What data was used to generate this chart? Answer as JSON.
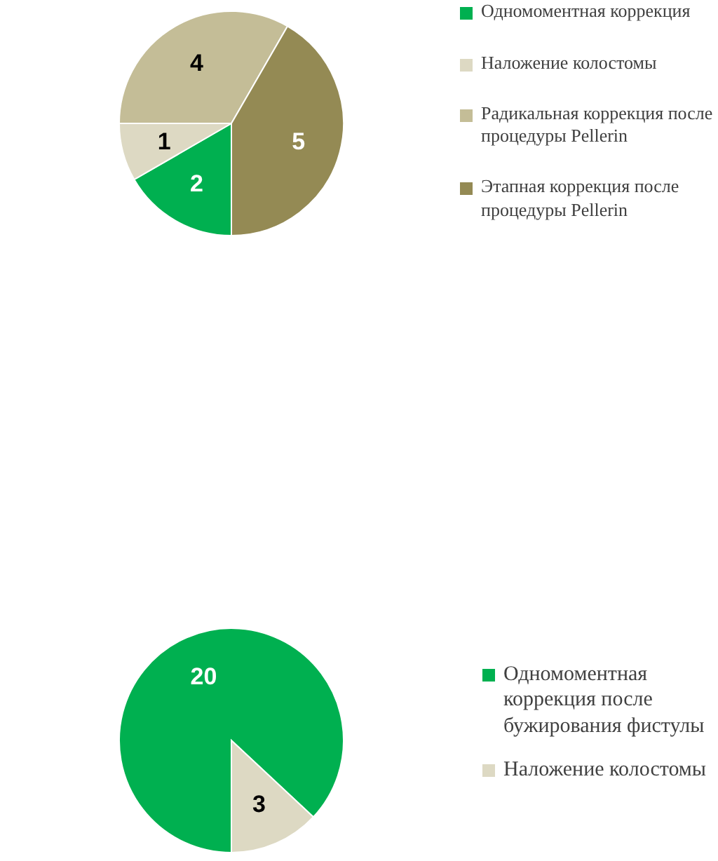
{
  "chart_data": [
    {
      "type": "pie",
      "categories": [
        "Одномоментная коррекция",
        "Наложение колостомы",
        "Радикальная коррекция после процедуры Pellerin",
        "Этапная коррекция после процедуры Pellerin"
      ],
      "values": [
        2,
        1,
        4,
        5
      ],
      "colors": [
        "#00b050",
        "#ddd9c3",
        "#c4bd97",
        "#948a54"
      ],
      "data_labels": true,
      "legend": "right"
    },
    {
      "type": "pie",
      "categories": [
        "Одномоментная коррекция после бужирования фистулы",
        "Наложение колостомы"
      ],
      "values": [
        20,
        3
      ],
      "colors": [
        "#00b050",
        "#ddd9c3"
      ],
      "data_labels": true,
      "legend": "right"
    }
  ]
}
